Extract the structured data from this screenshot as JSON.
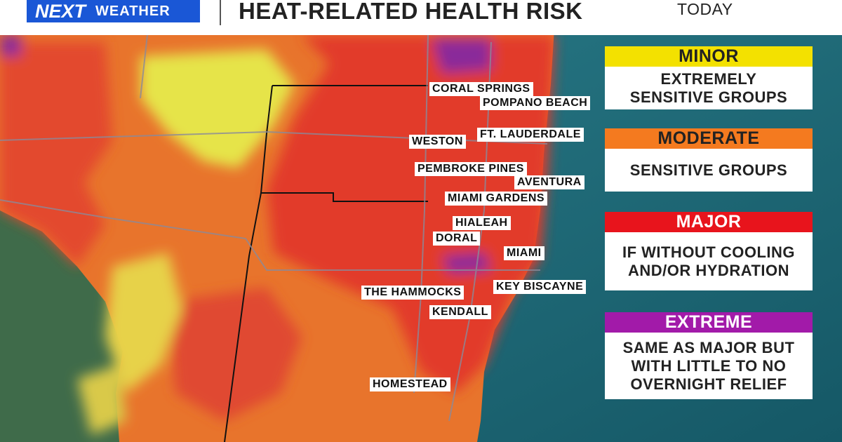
{
  "header": {
    "logo": [
      "NEXT",
      "WEATHER"
    ],
    "title": "HEAT-RELATED HEALTH RISK",
    "timeframe": "TODAY"
  },
  "cities": [
    "CORAL SPRINGS",
    "POMPANO BEACH",
    "FT. LAUDERDALE",
    "WESTON",
    "PEMBROKE PINES",
    "AVENTURA",
    "MIAMI GARDENS",
    "HIALEAH",
    "DORAL",
    "MIAMI",
    "THE HAMMOCKS",
    "KEY BISCAYNE",
    "KENDALL",
    "HOMESTEAD"
  ],
  "legend": [
    {
      "level": "MINOR",
      "color": "#f3e100",
      "text_color": "#222222",
      "description": [
        "EXTREMELY",
        "SENSITIVE GROUPS"
      ]
    },
    {
      "level": "MODERATE",
      "color": "#f47a1f",
      "text_color": "#222222",
      "description": [
        "SENSITIVE GROUPS"
      ]
    },
    {
      "level": "MAJOR",
      "color": "#e8141c",
      "text_color": "#ffffff",
      "description": [
        "IF WITHOUT COOLING",
        "AND/OR HYDRATION"
      ]
    },
    {
      "level": "EXTREME",
      "color": "#a21aa9",
      "text_color": "#ffffff",
      "description": [
        "SAME AS MAJOR BUT",
        "WITH LITTLE TO NO",
        "OVERNIGHT RELIEF"
      ]
    }
  ]
}
